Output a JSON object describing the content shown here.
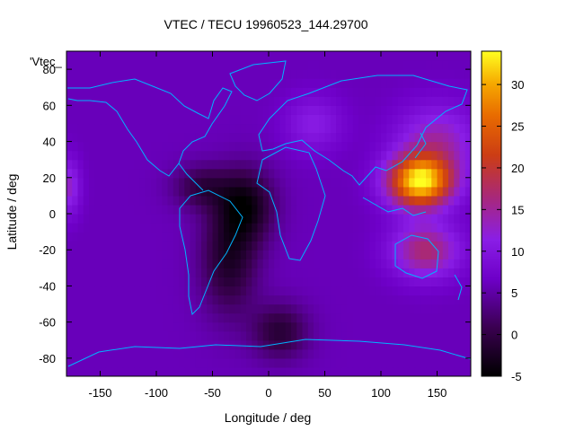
{
  "chart_data": {
    "type": "heatmap",
    "title": "VTEC / TECU 19960523_144.29700",
    "xlabel": "Longitude / deg",
    "ylabel": "Latitude / deg",
    "key_label": "'Vtec_",
    "xlim": [
      -180,
      180
    ],
    "ylim": [
      -90,
      90
    ],
    "x_ticks": [
      -150,
      -100,
      -50,
      0,
      50,
      100,
      150
    ],
    "y_ticks": [
      -80,
      -60,
      -40,
      -20,
      0,
      20,
      40,
      60,
      80
    ],
    "color_range": [
      -5,
      34
    ],
    "colorbar_ticks": [
      -5,
      0,
      5,
      10,
      15,
      20,
      25,
      30
    ],
    "palette": "black-purple-red-orange-yellow",
    "grid": false,
    "features": [
      {
        "lon": 135,
        "lat": 18,
        "vtec": 33,
        "spread_lon": 28,
        "spread_lat": 14
      },
      {
        "lon": 140,
        "lat": -20,
        "vtec": 17,
        "spread_lon": 30,
        "spread_lat": 15
      },
      {
        "lon": 150,
        "lat": 40,
        "vtec": 14,
        "spread_lon": 35,
        "spread_lat": 20
      },
      {
        "lon": -178,
        "lat": 15,
        "vtec": 13,
        "spread_lon": 10,
        "spread_lat": 15
      },
      {
        "lon": 40,
        "lat": 50,
        "vtec": 11,
        "spread_lon": 25,
        "spread_lat": 15
      },
      {
        "lon": -20,
        "lat": 5,
        "vtec": -3,
        "spread_lon": 25,
        "spread_lat": 20
      },
      {
        "lon": -35,
        "lat": -25,
        "vtec": -2,
        "spread_lon": 25,
        "spread_lat": 30
      },
      {
        "lon": 10,
        "lat": -65,
        "vtec": -1,
        "spread_lon": 25,
        "spread_lat": 15
      },
      {
        "lon": -60,
        "lat": 15,
        "vtec": 0,
        "spread_lon": 25,
        "spread_lat": 12
      }
    ],
    "background_vtec": 6
  }
}
